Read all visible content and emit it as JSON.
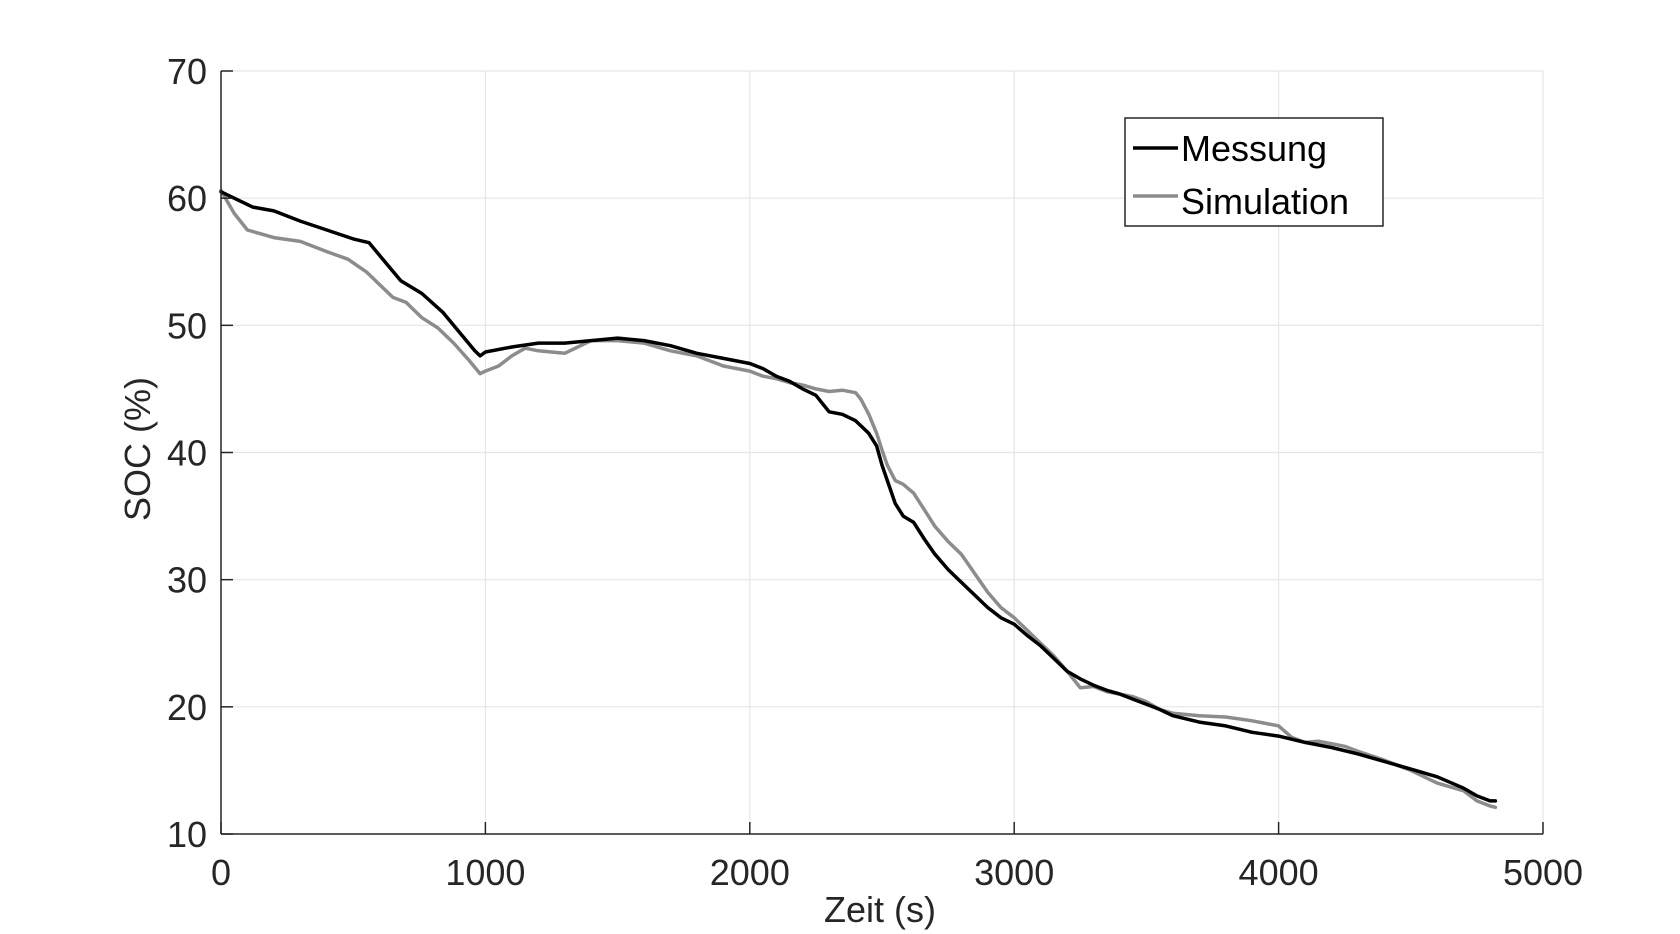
{
  "chart_data": {
    "type": "line",
    "title": "",
    "xlabel": "Zeit (s)",
    "ylabel": "SOC (%)",
    "xlim": [
      0,
      5000
    ],
    "ylim": [
      10,
      70
    ],
    "xticks": [
      "0",
      "1000",
      "2000",
      "3000",
      "4000",
      "5000"
    ],
    "yticks": [
      "10",
      "20",
      "30",
      "40",
      "50",
      "60",
      "70"
    ],
    "grid": true,
    "legend_position": "top-right",
    "series": [
      {
        "name": "Messung",
        "color": "#000000",
        "x": [
          0,
          50,
          120,
          200,
          300,
          400,
          500,
          560,
          620,
          680,
          760,
          840,
          900,
          960,
          980,
          1000,
          1100,
          1200,
          1300,
          1400,
          1500,
          1600,
          1700,
          1800,
          1900,
          2000,
          2050,
          2100,
          2150,
          2200,
          2250,
          2300,
          2350,
          2400,
          2450,
          2480,
          2500,
          2520,
          2550,
          2580,
          2620,
          2660,
          2700,
          2750,
          2800,
          2850,
          2900,
          2950,
          3000,
          3050,
          3100,
          3150,
          3200,
          3250,
          3300,
          3350,
          3400,
          3450,
          3500,
          3550,
          3600,
          3700,
          3800,
          3900,
          4000,
          4100,
          4200,
          4300,
          4400,
          4500,
          4600,
          4700,
          4750,
          4800,
          4820
        ],
        "y": [
          60.5,
          60.0,
          59.3,
          59.0,
          58.2,
          57.5,
          56.8,
          56.5,
          55.0,
          53.5,
          52.5,
          51.0,
          49.5,
          48.0,
          47.6,
          47.9,
          48.3,
          48.6,
          48.6,
          48.8,
          49.0,
          48.8,
          48.4,
          47.8,
          47.4,
          47.0,
          46.6,
          46.0,
          45.6,
          45.0,
          44.5,
          43.2,
          43.0,
          42.5,
          41.5,
          40.5,
          39.0,
          37.8,
          36.0,
          35.0,
          34.5,
          33.2,
          32.0,
          30.8,
          29.8,
          28.8,
          27.8,
          27.0,
          26.5,
          25.6,
          24.8,
          23.8,
          22.8,
          22.2,
          21.7,
          21.3,
          21.0,
          20.6,
          20.2,
          19.8,
          19.3,
          18.8,
          18.5,
          18.0,
          17.7,
          17.2,
          16.8,
          16.3,
          15.7,
          15.1,
          14.5,
          13.6,
          13.0,
          12.6,
          12.6
        ]
      },
      {
        "name": "Simulation",
        "color": "#8c8c8c",
        "x": [
          0,
          50,
          100,
          150,
          200,
          300,
          400,
          480,
          550,
          600,
          650,
          700,
          760,
          820,
          880,
          940,
          980,
          1000,
          1050,
          1100,
          1150,
          1200,
          1300,
          1400,
          1500,
          1600,
          1700,
          1800,
          1900,
          2000,
          2050,
          2100,
          2150,
          2200,
          2250,
          2300,
          2350,
          2400,
          2420,
          2450,
          2480,
          2500,
          2520,
          2550,
          2580,
          2620,
          2660,
          2700,
          2750,
          2800,
          2850,
          2900,
          2950,
          3000,
          3050,
          3100,
          3150,
          3200,
          3250,
          3300,
          3350,
          3400,
          3450,
          3500,
          3550,
          3600,
          3700,
          3800,
          3900,
          4000,
          4050,
          4100,
          4150,
          4200,
          4250,
          4300,
          4400,
          4500,
          4600,
          4700,
          4750,
          4800,
          4820
        ],
        "y": [
          60.6,
          58.8,
          57.5,
          57.2,
          56.9,
          56.6,
          55.8,
          55.2,
          54.2,
          53.2,
          52.2,
          51.8,
          50.6,
          49.8,
          48.6,
          47.2,
          46.2,
          46.4,
          46.8,
          47.6,
          48.2,
          48.0,
          47.8,
          48.8,
          48.8,
          48.6,
          48.0,
          47.6,
          46.8,
          46.4,
          46.0,
          45.8,
          45.5,
          45.3,
          45.0,
          44.8,
          44.9,
          44.7,
          44.2,
          43.0,
          41.5,
          40.2,
          39.0,
          37.8,
          37.5,
          36.8,
          35.5,
          34.2,
          33.0,
          32.0,
          30.5,
          29.0,
          27.8,
          27.0,
          26.0,
          25.0,
          24.0,
          22.8,
          21.5,
          21.6,
          21.2,
          21.0,
          20.8,
          20.4,
          19.8,
          19.5,
          19.3,
          19.2,
          18.9,
          18.5,
          17.6,
          17.2,
          17.3,
          17.1,
          16.9,
          16.5,
          15.8,
          15.0,
          14.0,
          13.4,
          12.6,
          12.2,
          12.1
        ]
      }
    ]
  }
}
